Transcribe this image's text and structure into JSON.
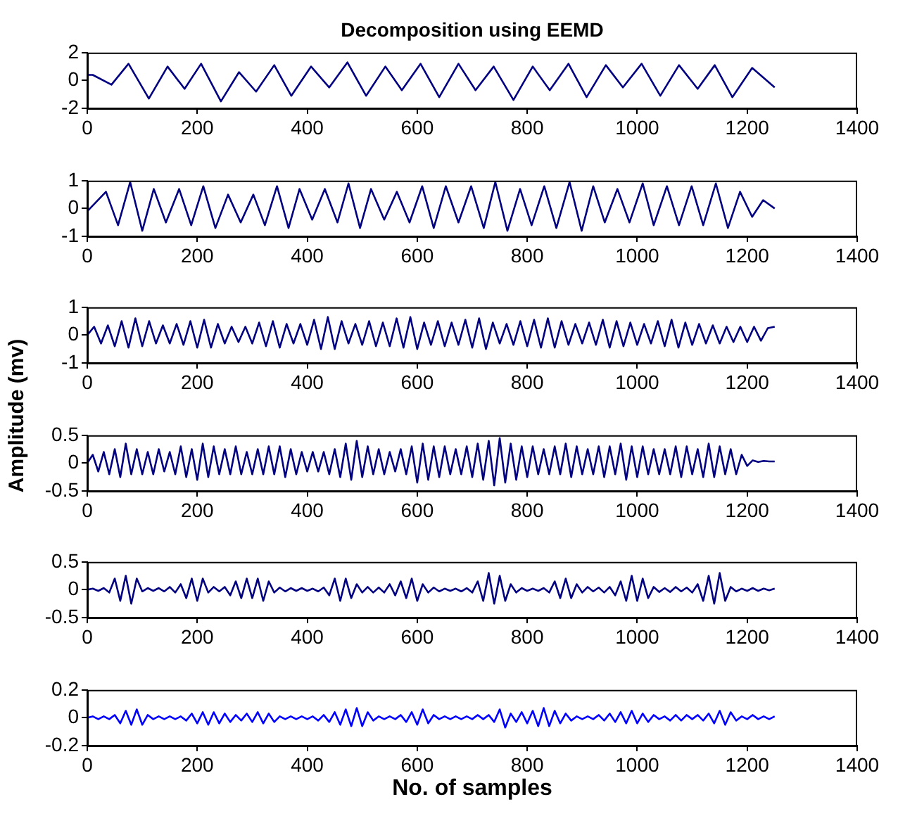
{
  "chart_data": [
    {
      "type": "line",
      "title": "Decomposition using EEMD",
      "x": [
        0,
        10,
        44,
        75,
        112,
        146,
        177,
        207,
        243,
        276,
        307,
        340,
        371,
        407,
        440,
        473,
        507,
        542,
        572,
        606,
        640,
        675,
        706,
        739,
        775,
        810,
        841,
        875,
        908,
        943,
        974,
        1008,
        1042,
        1076,
        1110,
        1141,
        1173,
        1209,
        1250
      ],
      "series": [
        {
          "color": "#000080",
          "values": [
            0.4,
            0.4,
            -0.3,
            1.2,
            -1.3,
            1.0,
            -0.6,
            1.2,
            -1.5,
            0.6,
            -0.8,
            1.1,
            -1.1,
            1.0,
            -0.5,
            1.3,
            -1.1,
            1.0,
            -0.7,
            1.2,
            -1.2,
            1.2,
            -0.7,
            1.0,
            -1.4,
            1.0,
            -0.7,
            1.2,
            -1.2,
            1.1,
            -0.5,
            1.2,
            -1.1,
            1.1,
            -0.6,
            1.1,
            -1.2,
            0.9,
            -0.5
          ]
        }
      ],
      "xlim": [
        0,
        1400
      ],
      "xticks": [
        0,
        200,
        400,
        600,
        800,
        1000,
        1200,
        1400
      ],
      "ylim": [
        -2,
        2
      ],
      "yticks": [
        -2,
        0,
        2
      ]
    },
    {
      "type": "line",
      "x": [
        0,
        34,
        56,
        78,
        100,
        121,
        143,
        167,
        189,
        211,
        233,
        256,
        279,
        302,
        323,
        345,
        366,
        386,
        409,
        432,
        455,
        475,
        496,
        516,
        540,
        563,
        586,
        609,
        630,
        652,
        675,
        698,
        721,
        742,
        764,
        787,
        808,
        831,
        853,
        877,
        899,
        920,
        941,
        964,
        986,
        1010,
        1030,
        1054,
        1076,
        1099,
        1120,
        1143,
        1165,
        1187,
        1209,
        1229,
        1250
      ],
      "series": [
        {
          "color": "#000080",
          "values": [
            -0.1,
            0.6,
            -0.6,
            0.95,
            -0.8,
            0.7,
            -0.5,
            0.7,
            -0.6,
            0.8,
            -0.7,
            0.5,
            -0.5,
            0.5,
            -0.6,
            0.8,
            -0.7,
            0.7,
            -0.4,
            0.7,
            -0.5,
            0.9,
            -0.7,
            0.7,
            -0.4,
            0.6,
            -0.5,
            0.8,
            -0.7,
            0.8,
            -0.5,
            0.8,
            -0.7,
            0.95,
            -0.8,
            0.7,
            -0.6,
            0.8,
            -0.7,
            0.95,
            -0.8,
            0.8,
            -0.5,
            0.7,
            -0.5,
            0.9,
            -0.6,
            0.8,
            -0.6,
            0.8,
            -0.6,
            0.9,
            -0.7,
            0.6,
            -0.3,
            0.3,
            0.0
          ]
        }
      ],
      "xlim": [
        0,
        1400
      ],
      "xticks": [
        0,
        200,
        400,
        600,
        800,
        1000,
        1200,
        1400
      ],
      "ylim": [
        -1,
        1
      ],
      "yticks": [
        -1,
        0,
        1
      ]
    },
    {
      "type": "line",
      "ylabel": "Amplitude (mv)",
      "x": [
        0,
        12.5,
        25,
        37.5,
        50,
        62.5,
        75,
        87.5,
        100,
        112.5,
        125,
        137.5,
        150,
        162.5,
        175,
        187.5,
        200,
        212.5,
        225,
        237.5,
        250,
        262.5,
        275,
        287.5,
        300,
        312.5,
        325,
        337.5,
        350,
        362.5,
        375,
        387.5,
        400,
        412.5,
        425,
        437.5,
        450,
        462.5,
        475,
        487.5,
        500,
        512.5,
        525,
        537.5,
        550,
        562.5,
        575,
        587.5,
        600,
        612.5,
        625,
        637.5,
        650,
        662.5,
        675,
        687.5,
        700,
        712.5,
        725,
        737.5,
        750,
        762.5,
        775,
        787.5,
        800,
        812.5,
        825,
        837.5,
        850,
        862.5,
        875,
        887.5,
        900,
        912.5,
        925,
        937.5,
        950,
        962.5,
        975,
        987.5,
        1000,
        1012.5,
        1025,
        1037.5,
        1050,
        1062.5,
        1075,
        1087.5,
        1100,
        1112.5,
        1125,
        1137.5,
        1150,
        1162.5,
        1175,
        1187.5,
        1200,
        1212.5,
        1225,
        1237.5,
        1250
      ],
      "series": [
        {
          "color": "#000080",
          "values": [
            0,
            0.3,
            -0.3,
            0.35,
            -0.4,
            0.5,
            -0.45,
            0.6,
            -0.4,
            0.5,
            -0.3,
            0.35,
            -0.3,
            0.4,
            -0.35,
            0.5,
            -0.45,
            0.55,
            -0.45,
            0.4,
            -0.3,
            0.3,
            -0.25,
            0.3,
            -0.3,
            0.45,
            -0.4,
            0.5,
            -0.45,
            0.4,
            -0.3,
            0.4,
            -0.35,
            0.55,
            -0.5,
            0.65,
            -0.5,
            0.5,
            -0.3,
            0.4,
            -0.35,
            0.5,
            -0.4,
            0.45,
            -0.4,
            0.6,
            -0.45,
            0.65,
            -0.5,
            0.45,
            -0.35,
            0.5,
            -0.4,
            0.45,
            -0.35,
            0.55,
            -0.45,
            0.6,
            -0.5,
            0.45,
            -0.3,
            0.4,
            -0.35,
            0.5,
            -0.4,
            0.55,
            -0.45,
            0.6,
            -0.45,
            0.5,
            -0.35,
            0.4,
            -0.3,
            0.45,
            -0.35,
            0.55,
            -0.45,
            0.5,
            -0.4,
            0.45,
            -0.35,
            0.4,
            -0.3,
            0.5,
            -0.4,
            0.55,
            -0.45,
            0.45,
            -0.35,
            0.4,
            -0.3,
            0.35,
            -0.3,
            0.3,
            -0.25,
            0.3,
            -0.25,
            0.3,
            -0.2,
            0.25,
            0.3
          ]
        }
      ],
      "xlim": [
        0,
        1400
      ],
      "xticks": [
        0,
        200,
        400,
        600,
        800,
        1000,
        1200,
        1400
      ],
      "ylim": [
        -1,
        1
      ],
      "yticks": [
        -1,
        0,
        1
      ]
    },
    {
      "type": "line",
      "x": [
        0,
        10,
        20,
        30,
        40,
        50,
        60,
        70,
        80,
        90,
        100,
        110,
        120,
        130,
        140,
        150,
        160,
        170,
        180,
        190,
        200,
        210,
        220,
        230,
        240,
        250,
        260,
        270,
        280,
        290,
        300,
        310,
        320,
        330,
        340,
        350,
        360,
        370,
        380,
        390,
        400,
        410,
        420,
        430,
        440,
        450,
        460,
        470,
        480,
        490,
        500,
        510,
        520,
        530,
        540,
        550,
        560,
        570,
        580,
        590,
        600,
        610,
        620,
        630,
        640,
        650,
        660,
        670,
        680,
        690,
        700,
        710,
        720,
        730,
        740,
        750,
        760,
        770,
        780,
        790,
        800,
        810,
        820,
        830,
        840,
        850,
        860,
        870,
        880,
        890,
        900,
        910,
        920,
        930,
        940,
        950,
        960,
        970,
        980,
        990,
        1000,
        1010,
        1020,
        1030,
        1040,
        1050,
        1060,
        1070,
        1080,
        1090,
        1100,
        1110,
        1120,
        1130,
        1140,
        1150,
        1160,
        1170,
        1180,
        1190,
        1200,
        1210,
        1220,
        1230,
        1240,
        1250
      ],
      "series": [
        {
          "color": "#000080",
          "values": [
            0,
            0.15,
            -0.15,
            0.2,
            -0.2,
            0.25,
            -0.25,
            0.35,
            -0.2,
            0.25,
            -0.2,
            0.2,
            -0.2,
            0.25,
            -0.15,
            0.2,
            -0.2,
            0.3,
            -0.25,
            0.25,
            -0.3,
            0.35,
            -0.25,
            0.3,
            -0.2,
            0.25,
            -0.2,
            0.3,
            -0.2,
            0.2,
            -0.2,
            0.25,
            -0.2,
            0.3,
            -0.2,
            0.3,
            -0.25,
            0.25,
            -0.2,
            0.2,
            -0.15,
            0.2,
            -0.15,
            0.2,
            -0.2,
            0.25,
            -0.25,
            0.35,
            -0.3,
            0.4,
            -0.25,
            0.3,
            -0.2,
            0.25,
            -0.2,
            0.2,
            -0.15,
            0.25,
            -0.2,
            0.3,
            -0.35,
            0.35,
            -0.3,
            0.3,
            -0.25,
            0.3,
            -0.2,
            0.25,
            -0.2,
            0.3,
            -0.25,
            0.35,
            -0.3,
            0.4,
            -0.4,
            0.45,
            -0.35,
            0.35,
            -0.3,
            0.3,
            -0.25,
            0.3,
            -0.2,
            0.25,
            -0.2,
            0.3,
            -0.2,
            0.35,
            -0.25,
            0.3,
            -0.2,
            0.25,
            -0.2,
            0.3,
            -0.25,
            0.3,
            -0.2,
            0.35,
            -0.3,
            0.3,
            -0.25,
            0.3,
            -0.2,
            0.25,
            -0.2,
            0.25,
            -0.2,
            0.3,
            -0.25,
            0.3,
            -0.2,
            0.25,
            -0.25,
            0.35,
            -0.25,
            0.3,
            -0.2,
            0.25,
            -0.2,
            0.15,
            -0.05,
            0.05,
            0.02,
            0.04,
            0.03,
            0.03
          ]
        }
      ],
      "xlim": [
        0,
        1400
      ],
      "xticks": [
        0,
        200,
        400,
        600,
        800,
        1000,
        1200,
        1400
      ],
      "ylim": [
        -0.5,
        0.5
      ],
      "yticks": [
        -0.5,
        0,
        0.5
      ]
    },
    {
      "type": "line",
      "x": [
        0,
        10,
        20,
        30,
        40,
        50,
        60,
        70,
        80,
        90,
        100,
        110,
        120,
        130,
        140,
        150,
        160,
        170,
        180,
        190,
        200,
        210,
        220,
        230,
        240,
        250,
        260,
        270,
        280,
        290,
        300,
        310,
        320,
        330,
        340,
        350,
        360,
        370,
        380,
        390,
        400,
        410,
        420,
        430,
        440,
        450,
        460,
        470,
        480,
        490,
        500,
        510,
        520,
        530,
        540,
        550,
        560,
        570,
        580,
        590,
        600,
        610,
        620,
        630,
        640,
        650,
        660,
        670,
        680,
        690,
        700,
        710,
        720,
        730,
        740,
        750,
        760,
        770,
        780,
        790,
        800,
        810,
        820,
        830,
        840,
        850,
        860,
        870,
        880,
        890,
        900,
        910,
        920,
        930,
        940,
        950,
        960,
        970,
        980,
        990,
        1000,
        1010,
        1020,
        1030,
        1040,
        1050,
        1060,
        1070,
        1080,
        1090,
        1100,
        1110,
        1120,
        1130,
        1140,
        1150,
        1160,
        1170,
        1180,
        1190,
        1200,
        1210,
        1220,
        1230,
        1240,
        1250
      ],
      "series": [
        {
          "color": "#000080",
          "values": [
            0,
            0.02,
            -0.02,
            0.03,
            -0.05,
            0.2,
            -0.2,
            0.25,
            -0.25,
            0.2,
            -0.03,
            0.03,
            -0.02,
            0.03,
            -0.03,
            0.05,
            -0.05,
            0.1,
            -0.15,
            0.2,
            -0.2,
            0.2,
            -0.05,
            0.05,
            -0.03,
            0.05,
            -0.1,
            0.15,
            -0.15,
            0.2,
            -0.15,
            0.2,
            -0.2,
            0.15,
            -0.05,
            0.04,
            -0.03,
            0.03,
            -0.02,
            0.03,
            -0.02,
            0.02,
            -0.03,
            0.04,
            -0.1,
            0.2,
            -0.2,
            0.2,
            -0.15,
            0.1,
            -0.05,
            0.05,
            -0.05,
            0.04,
            -0.05,
            0.1,
            -0.1,
            0.15,
            -0.15,
            0.2,
            -0.2,
            0.1,
            -0.05,
            0.04,
            -0.03,
            0.02,
            -0.02,
            0.02,
            -0.03,
            0.03,
            -0.05,
            0.15,
            -0.2,
            0.3,
            -0.25,
            0.25,
            -0.2,
            0.1,
            -0.05,
            0.03,
            -0.02,
            0.02,
            -0.02,
            0.03,
            -0.05,
            0.15,
            -0.15,
            0.2,
            -0.15,
            0.1,
            -0.05,
            0.05,
            -0.03,
            0.04,
            -0.05,
            0.05,
            -0.1,
            0.15,
            -0.2,
            0.25,
            -0.2,
            0.2,
            -0.15,
            0.05,
            -0.04,
            0.03,
            -0.04,
            0.05,
            -0.03,
            0.04,
            -0.05,
            0.1,
            -0.2,
            0.25,
            -0.25,
            0.3,
            -0.2,
            0.05,
            -0.03,
            0.02,
            -0.02,
            0.03,
            -0.02,
            0.02,
            -0.01,
            0.02
          ]
        }
      ],
      "xlim": [
        0,
        1400
      ],
      "xticks": [
        0,
        200,
        400,
        600,
        800,
        1000,
        1200,
        1400
      ],
      "ylim": [
        -0.5,
        0.5
      ],
      "yticks": [
        -0.5,
        0,
        0.5
      ]
    },
    {
      "type": "line",
      "xlabel": "No. of samples",
      "x": [
        0,
        10,
        20,
        30,
        40,
        50,
        60,
        70,
        80,
        90,
        100,
        110,
        120,
        130,
        140,
        150,
        160,
        170,
        180,
        190,
        200,
        210,
        220,
        230,
        240,
        250,
        260,
        270,
        280,
        290,
        300,
        310,
        320,
        330,
        340,
        350,
        360,
        370,
        380,
        390,
        400,
        410,
        420,
        430,
        440,
        450,
        460,
        470,
        480,
        490,
        500,
        510,
        520,
        530,
        540,
        550,
        560,
        570,
        580,
        590,
        600,
        610,
        620,
        630,
        640,
        650,
        660,
        670,
        680,
        690,
        700,
        710,
        720,
        730,
        740,
        750,
        760,
        770,
        780,
        790,
        800,
        810,
        820,
        830,
        840,
        850,
        860,
        870,
        880,
        890,
        900,
        910,
        920,
        930,
        940,
        950,
        960,
        970,
        980,
        990,
        1000,
        1010,
        1020,
        1030,
        1040,
        1050,
        1060,
        1070,
        1080,
        1090,
        1100,
        1110,
        1120,
        1130,
        1140,
        1150,
        1160,
        1170,
        1180,
        1190,
        1200,
        1210,
        1220,
        1230,
        1240,
        1250
      ],
      "series": [
        {
          "color": "#0000ff",
          "values": [
            0,
            0.01,
            -0.01,
            0.01,
            -0.01,
            0.02,
            -0.04,
            0.05,
            -0.05,
            0.06,
            -0.05,
            0.02,
            -0.01,
            0.01,
            -0.01,
            0.01,
            -0.01,
            0.01,
            -0.02,
            0.03,
            -0.04,
            0.04,
            -0.05,
            0.04,
            -0.04,
            0.03,
            -0.03,
            0.02,
            -0.02,
            0.03,
            -0.03,
            0.04,
            -0.04,
            0.03,
            -0.03,
            0.01,
            -0.01,
            0.01,
            -0.01,
            0.01,
            -0.01,
            0.01,
            -0.02,
            0.02,
            -0.03,
            0.04,
            -0.05,
            0.06,
            -0.06,
            0.07,
            -0.06,
            0.04,
            -0.02,
            0.01,
            -0.01,
            0.01,
            -0.01,
            0.02,
            -0.03,
            0.04,
            -0.05,
            0.06,
            -0.04,
            0.02,
            -0.01,
            0.01,
            -0.01,
            0.01,
            -0.01,
            0.01,
            -0.01,
            0.02,
            -0.01,
            0.02,
            -0.03,
            0.06,
            -0.07,
            0.03,
            -0.03,
            0.04,
            -0.04,
            0.05,
            -0.06,
            0.07,
            -0.06,
            0.05,
            -0.04,
            0.03,
            -0.02,
            0.01,
            -0.01,
            0.01,
            -0.01,
            0.02,
            -0.02,
            0.03,
            -0.03,
            0.04,
            -0.04,
            0.05,
            -0.04,
            0.03,
            -0.03,
            0.02,
            -0.01,
            0.01,
            -0.02,
            0.02,
            -0.02,
            0.02,
            -0.01,
            0.02,
            -0.02,
            0.03,
            -0.04,
            0.05,
            -0.05,
            0.04,
            -0.02,
            0.01,
            -0.01,
            0.02,
            -0.01,
            0.01,
            -0.01,
            0.01
          ]
        }
      ],
      "xlim": [
        0,
        1400
      ],
      "xticks": [
        0,
        200,
        400,
        600,
        800,
        1000,
        1200,
        1400
      ],
      "ylim": [
        -0.2,
        0.2
      ],
      "yticks": [
        -0.2,
        0,
        0.2
      ]
    }
  ]
}
